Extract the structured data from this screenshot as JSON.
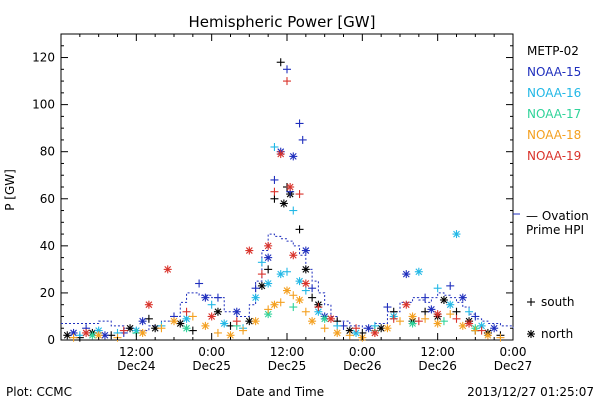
{
  "chart_data": {
    "type": "scatter",
    "title": "Hemispheric Power [GW]",
    "ylabel": "P [GW]",
    "xlabel": "Date and Time",
    "ylim": [
      0,
      130
    ],
    "yticks": [
      0,
      20,
      40,
      60,
      80,
      100,
      120
    ],
    "xlim_hours": [
      0,
      72
    ],
    "xticks": [
      {
        "hour": 12,
        "time": "12:00",
        "date": "Dec24"
      },
      {
        "hour": 24,
        "time": "0:00",
        "date": "Dec25"
      },
      {
        "hour": 36,
        "time": "12:00",
        "date": "Dec25"
      },
      {
        "hour": 48,
        "time": "0:00",
        "date": "Dec26"
      },
      {
        "hour": 60,
        "time": "12:00",
        "date": "Dec26"
      },
      {
        "hour": 72,
        "time": "0:00",
        "date": "Dec27"
      }
    ],
    "series": [
      {
        "name": "METP-02",
        "color": "#000000",
        "points": [
          [
            1,
            2,
            "*"
          ],
          [
            3,
            1,
            "+"
          ],
          [
            5,
            3,
            "*"
          ],
          [
            8,
            2,
            "+"
          ],
          [
            11,
            5,
            "*"
          ],
          [
            14,
            9,
            "+"
          ],
          [
            15,
            5,
            "*"
          ],
          [
            19,
            7,
            "*"
          ],
          [
            21,
            4,
            "+"
          ],
          [
            25,
            12,
            "*"
          ],
          [
            27,
            6,
            "+"
          ],
          [
            30,
            8,
            "*"
          ],
          [
            32,
            23,
            "*"
          ],
          [
            33,
            30,
            "+"
          ],
          [
            34,
            60,
            "+"
          ],
          [
            35,
            118,
            "+"
          ],
          [
            35.5,
            58,
            "*"
          ],
          [
            36,
            65,
            "+"
          ],
          [
            36.5,
            62,
            "*"
          ],
          [
            38,
            47,
            "+"
          ],
          [
            39,
            30,
            "*"
          ],
          [
            40,
            18,
            "+"
          ],
          [
            41,
            15,
            "*"
          ],
          [
            44,
            8,
            "+"
          ],
          [
            46,
            4,
            "*"
          ],
          [
            48,
            3,
            "+"
          ],
          [
            51,
            5,
            "*"
          ],
          [
            53,
            12,
            "+"
          ],
          [
            56,
            8,
            "*"
          ],
          [
            58,
            12,
            "+"
          ],
          [
            60,
            10,
            "*"
          ],
          [
            61,
            17,
            "*"
          ],
          [
            63,
            12,
            "+"
          ],
          [
            65,
            8,
            "*"
          ],
          [
            66,
            4,
            "+"
          ],
          [
            68,
            3,
            "*"
          ],
          [
            70,
            2,
            "+"
          ]
        ]
      },
      {
        "name": "NOAA-15",
        "color": "#1f2fbd",
        "points": [
          [
            2,
            3,
            "*"
          ],
          [
            4,
            5,
            "+"
          ],
          [
            7,
            2,
            "*"
          ],
          [
            10,
            3,
            "+"
          ],
          [
            13,
            8,
            "*"
          ],
          [
            18,
            10,
            "+"
          ],
          [
            22,
            24,
            "+"
          ],
          [
            23,
            18,
            "*"
          ],
          [
            25,
            18,
            "+"
          ],
          [
            28,
            12,
            "*"
          ],
          [
            31,
            22,
            "+"
          ],
          [
            33,
            35,
            "*"
          ],
          [
            34,
            68,
            "+"
          ],
          [
            35,
            80,
            "*"
          ],
          [
            36,
            115,
            "+"
          ],
          [
            36.5,
            63,
            "+"
          ],
          [
            37,
            78,
            "*"
          ],
          [
            38,
            92,
            "+"
          ],
          [
            38.5,
            85,
            "+"
          ],
          [
            39,
            38,
            "*"
          ],
          [
            40,
            22,
            "+"
          ],
          [
            42,
            10,
            "*"
          ],
          [
            45,
            6,
            "+"
          ],
          [
            49,
            5,
            "*"
          ],
          [
            52,
            14,
            "+"
          ],
          [
            55,
            28,
            "*"
          ],
          [
            58,
            18,
            "+"
          ],
          [
            59,
            13,
            "*"
          ],
          [
            62,
            23,
            "+"
          ],
          [
            64,
            18,
            "*"
          ],
          [
            66,
            10,
            "+"
          ],
          [
            69,
            5,
            "*"
          ]
        ]
      },
      {
        "name": "NOAA-16",
        "color": "#22b8e6",
        "points": [
          [
            3,
            2,
            "+"
          ],
          [
            6,
            4,
            "*"
          ],
          [
            9,
            3,
            "+"
          ],
          [
            12,
            4,
            "*"
          ],
          [
            16,
            6,
            "+"
          ],
          [
            20,
            9,
            "*"
          ],
          [
            24,
            15,
            "+"
          ],
          [
            26,
            7,
            "*"
          ],
          [
            29,
            5,
            "+"
          ],
          [
            31,
            18,
            "*"
          ],
          [
            32,
            33,
            "+"
          ],
          [
            33,
            24,
            "*"
          ],
          [
            34,
            82,
            "+"
          ],
          [
            35,
            28,
            "*"
          ],
          [
            36,
            29,
            "+"
          ],
          [
            37,
            55,
            "+"
          ],
          [
            38,
            25,
            "*"
          ],
          [
            39,
            21,
            "+"
          ],
          [
            41,
            12,
            "*"
          ],
          [
            44,
            6,
            "+"
          ],
          [
            47,
            3,
            "*"
          ],
          [
            50,
            6,
            "+"
          ],
          [
            53,
            10,
            "*"
          ],
          [
            57,
            29,
            "*"
          ],
          [
            60,
            22,
            "+"
          ],
          [
            62,
            15,
            "*"
          ],
          [
            63,
            45,
            "*"
          ],
          [
            65,
            12,
            "+"
          ],
          [
            67,
            6,
            "*"
          ]
        ]
      },
      {
        "name": "NOAA-17",
        "color": "#2fd39a",
        "points": [
          [
            5,
            2,
            "*"
          ],
          [
            12,
            3,
            "+"
          ],
          [
            20,
            5,
            "*"
          ],
          [
            28,
            6,
            "+"
          ],
          [
            33,
            11,
            "*"
          ],
          [
            37,
            14,
            "+"
          ],
          [
            42,
            9,
            "*"
          ],
          [
            50,
            4,
            "+"
          ],
          [
            56,
            7,
            "*"
          ],
          [
            61,
            8,
            "+"
          ],
          [
            66,
            5,
            "*"
          ]
        ]
      },
      {
        "name": "NOAA-18",
        "color": "#f4a020",
        "points": [
          [
            2,
            1,
            "+"
          ],
          [
            6,
            2,
            "*"
          ],
          [
            9,
            1,
            "+"
          ],
          [
            13,
            3,
            "*"
          ],
          [
            16,
            5,
            "+"
          ],
          [
            18,
            8,
            "*"
          ],
          [
            21,
            10,
            "+"
          ],
          [
            23,
            6,
            "*"
          ],
          [
            25,
            3,
            "+"
          ],
          [
            27,
            2,
            "*"
          ],
          [
            29,
            4,
            "+"
          ],
          [
            31,
            8,
            "*"
          ],
          [
            33,
            13,
            "+"
          ],
          [
            34,
            15,
            "*"
          ],
          [
            35,
            16,
            "+"
          ],
          [
            36,
            21,
            "*"
          ],
          [
            37,
            19,
            "+"
          ],
          [
            38,
            17,
            "*"
          ],
          [
            39,
            12,
            "+"
          ],
          [
            40,
            8,
            "*"
          ],
          [
            42,
            5,
            "+"
          ],
          [
            44,
            3,
            "*"
          ],
          [
            46,
            2,
            "+"
          ],
          [
            48,
            1,
            "*"
          ],
          [
            50,
            3,
            "+"
          ],
          [
            52,
            5,
            "*"
          ],
          [
            54,
            8,
            "+"
          ],
          [
            56,
            10,
            "*"
          ],
          [
            58,
            9,
            "+"
          ],
          [
            60,
            7,
            "*"
          ],
          [
            62,
            11,
            "+"
          ],
          [
            64,
            6,
            "*"
          ],
          [
            66,
            4,
            "+"
          ],
          [
            68,
            2,
            "*"
          ],
          [
            70,
            1,
            "+"
          ]
        ]
      },
      {
        "name": "NOAA-19",
        "color": "#d9332b",
        "points": [
          [
            4,
            3,
            "*"
          ],
          [
            10,
            4,
            "+"
          ],
          [
            14,
            15,
            "*"
          ],
          [
            17,
            30,
            "*"
          ],
          [
            20,
            12,
            "+"
          ],
          [
            24,
            10,
            "*"
          ],
          [
            28,
            8,
            "+"
          ],
          [
            30,
            38,
            "*"
          ],
          [
            32,
            28,
            "+"
          ],
          [
            33,
            40,
            "*"
          ],
          [
            34,
            63,
            "+"
          ],
          [
            35,
            79,
            "*"
          ],
          [
            36,
            110,
            "+"
          ],
          [
            36.5,
            65,
            "*"
          ],
          [
            37,
            36,
            "*"
          ],
          [
            38,
            62,
            "+"
          ],
          [
            39,
            24,
            "*"
          ],
          [
            41,
            14,
            "+"
          ],
          [
            43,
            9,
            "*"
          ],
          [
            47,
            5,
            "+"
          ],
          [
            50,
            3,
            "*"
          ],
          [
            53,
            9,
            "+"
          ],
          [
            55,
            15,
            "*"
          ],
          [
            57,
            8,
            "+"
          ],
          [
            60,
            11,
            "*"
          ],
          [
            63,
            9,
            "+"
          ],
          [
            65,
            7,
            "*"
          ],
          [
            67,
            4,
            "+"
          ]
        ]
      }
    ],
    "ovation_color": "#1f2fbd",
    "ovation_label_line1": "— Ovation",
    "ovation_label_line2": "Prime HPI",
    "ovation": [
      [
        0,
        7
      ],
      [
        4,
        7
      ],
      [
        6,
        8
      ],
      [
        8,
        6
      ],
      [
        10,
        5
      ],
      [
        12,
        4
      ],
      [
        14,
        6
      ],
      [
        16,
        8
      ],
      [
        18,
        10
      ],
      [
        19,
        16
      ],
      [
        20,
        20
      ],
      [
        22,
        19
      ],
      [
        24,
        18
      ],
      [
        26,
        12
      ],
      [
        28,
        10
      ],
      [
        30,
        15
      ],
      [
        31,
        25
      ],
      [
        32,
        38
      ],
      [
        33,
        45
      ],
      [
        34,
        44
      ],
      [
        35,
        43
      ],
      [
        36,
        42
      ],
      [
        37,
        40
      ],
      [
        38,
        36
      ],
      [
        39,
        30
      ],
      [
        40,
        25
      ],
      [
        41,
        20
      ],
      [
        42,
        15
      ],
      [
        43,
        10
      ],
      [
        44,
        8
      ],
      [
        46,
        6
      ],
      [
        48,
        5
      ],
      [
        50,
        7
      ],
      [
        52,
        12
      ],
      [
        54,
        16
      ],
      [
        56,
        18
      ],
      [
        57,
        17
      ],
      [
        58,
        16
      ],
      [
        59,
        18
      ],
      [
        60,
        20
      ],
      [
        61,
        19
      ],
      [
        62,
        18
      ],
      [
        63,
        16
      ],
      [
        64,
        14
      ],
      [
        65,
        11
      ],
      [
        66,
        9
      ],
      [
        67,
        8
      ],
      [
        68,
        7
      ],
      [
        70,
        6
      ],
      [
        72,
        5
      ]
    ],
    "legend_position": "right",
    "marker_legend": [
      {
        "symbol": "+",
        "label": "south"
      },
      {
        "symbol": "*",
        "label": "north"
      }
    ]
  },
  "footer": {
    "plot_credit": "Plot: CCMC",
    "timestamp": "2013/12/27 01:25:07"
  }
}
